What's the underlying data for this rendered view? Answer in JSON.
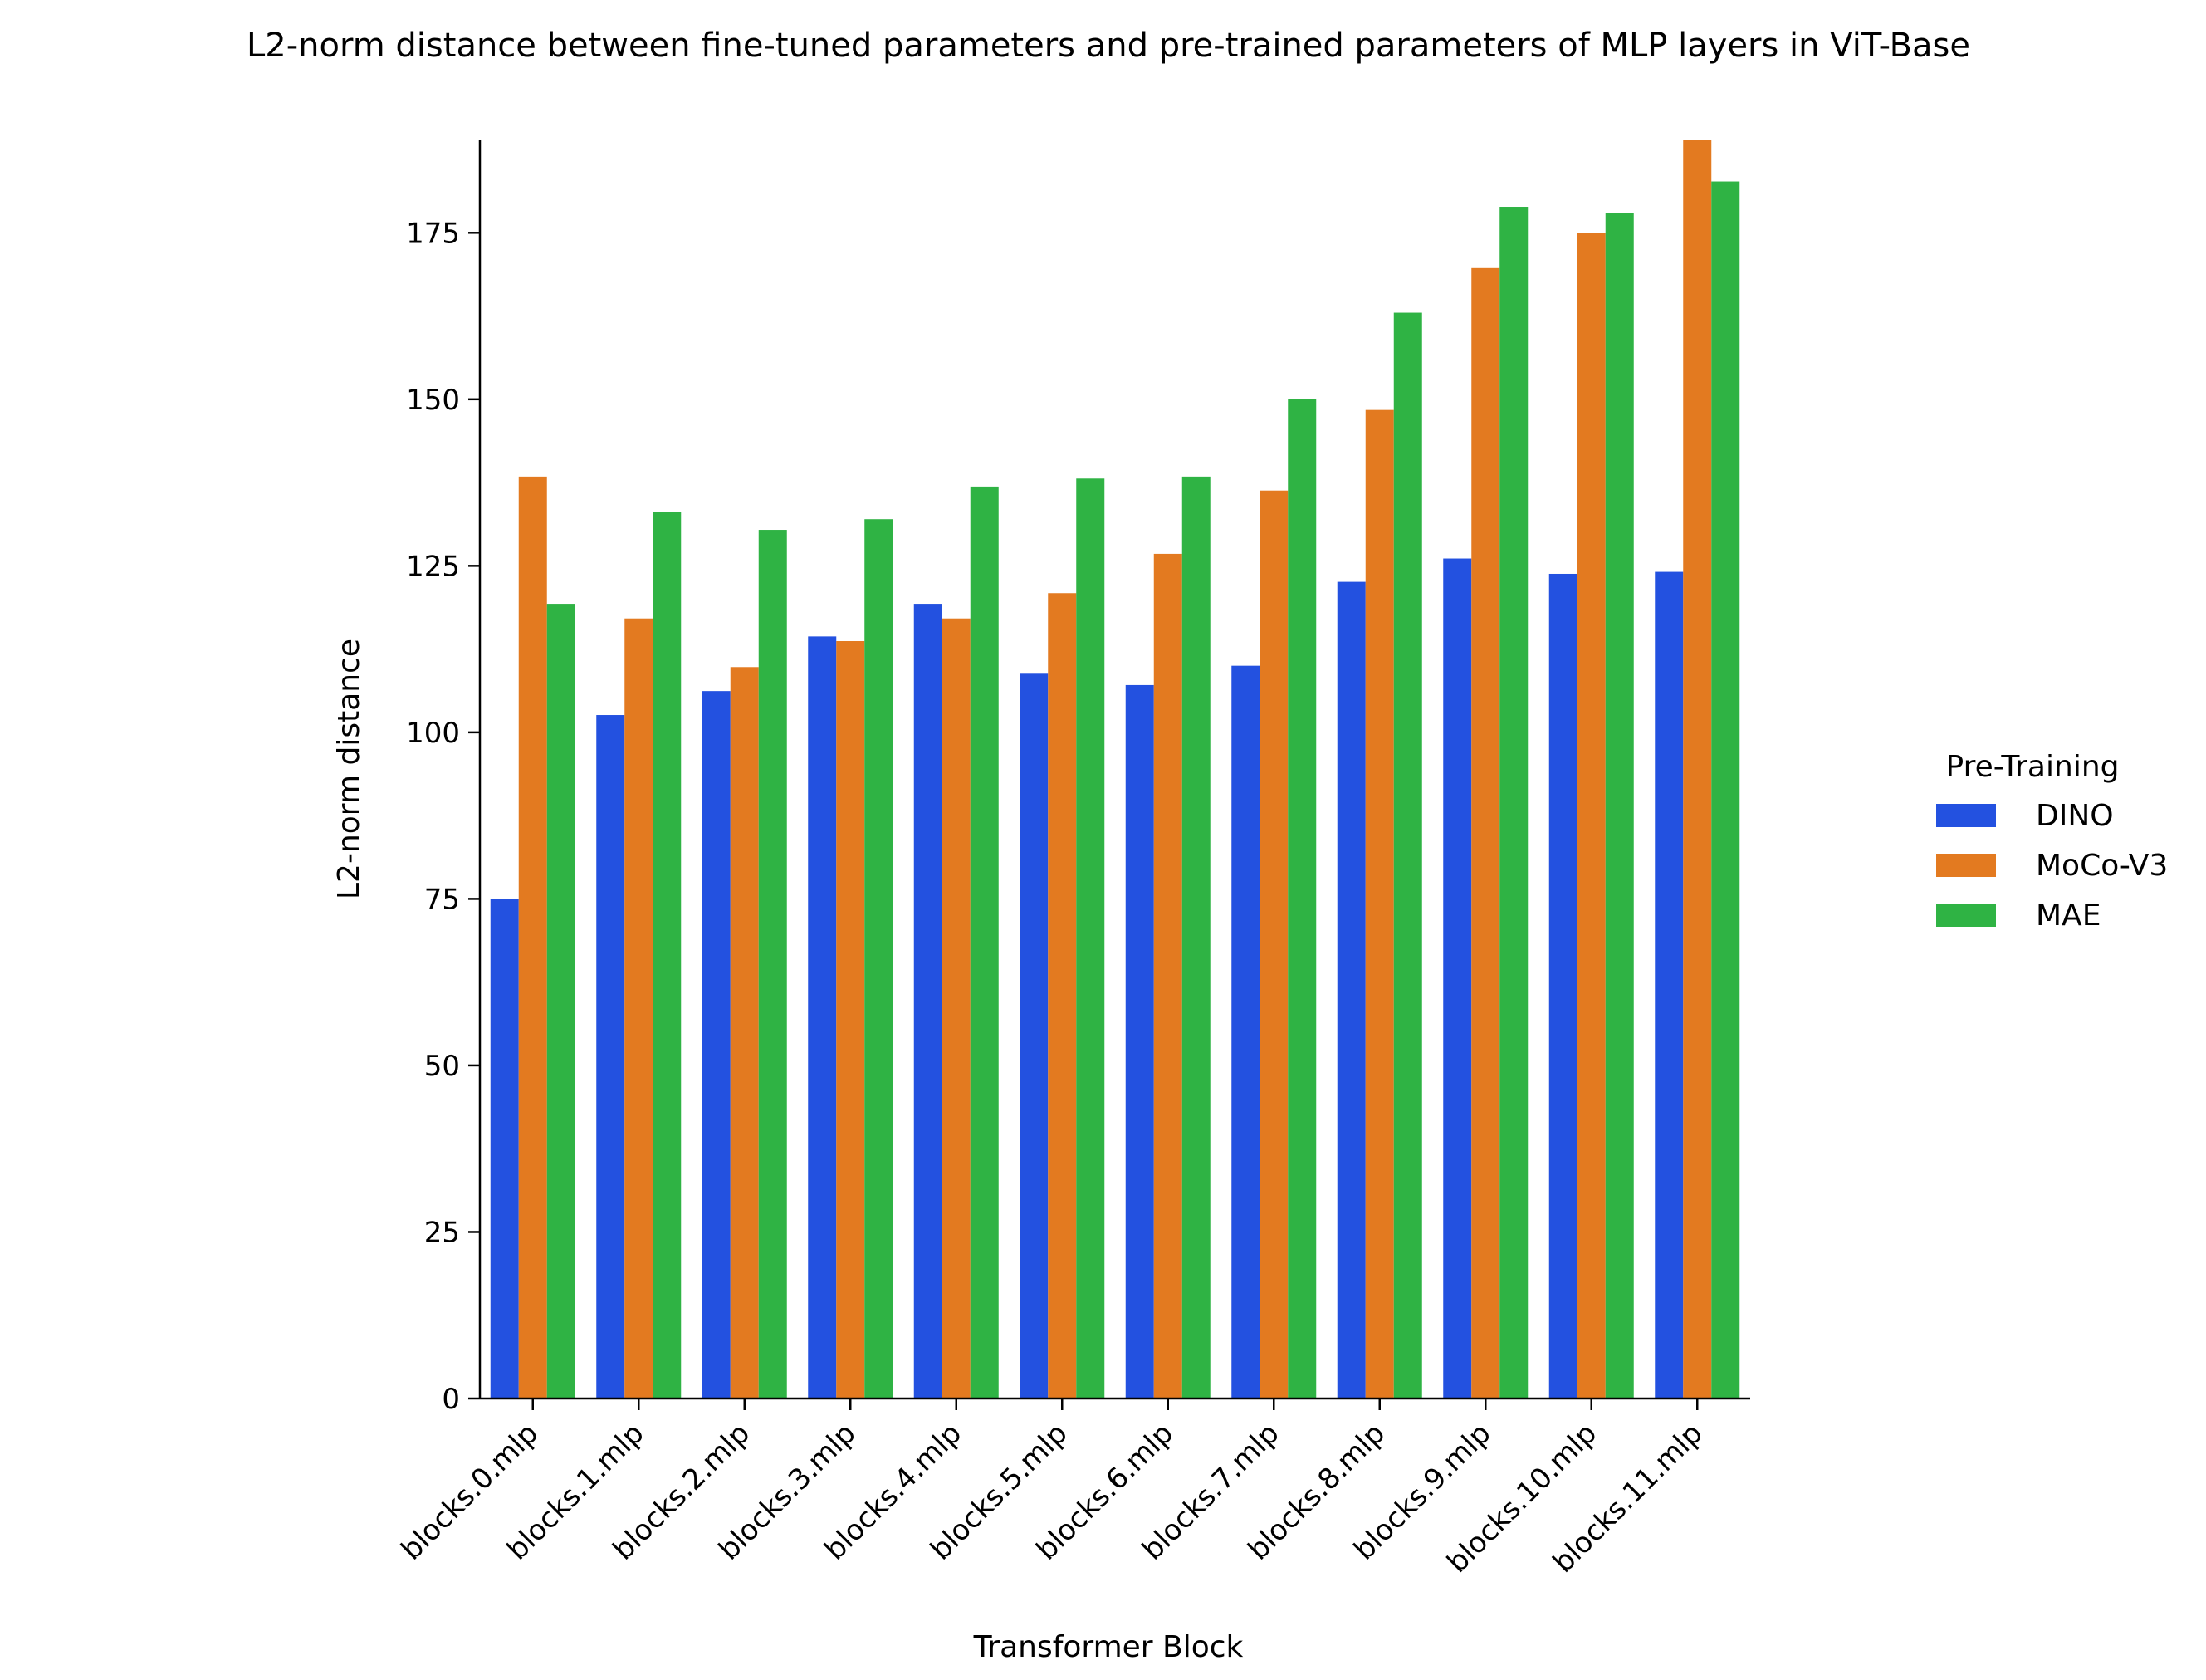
{
  "chart_data": {
    "type": "bar",
    "title": "L2-norm distance between fine-tuned parameters and pre-trained parameters of MLP layers in ViT-Base",
    "xlabel": "Transformer Block",
    "ylabel": "L2-norm distance",
    "ylim": [
      0,
      189
    ],
    "yticks": [
      0,
      25,
      50,
      75,
      100,
      125,
      150,
      175
    ],
    "grid": false,
    "legend": {
      "title": "Pre-Training",
      "position": "right"
    },
    "categories": [
      "blocks.0.mlp",
      "blocks.1.mlp",
      "blocks.2.mlp",
      "blocks.3.mlp",
      "blocks.4.mlp",
      "blocks.5.mlp",
      "blocks.6.mlp",
      "blocks.7.mlp",
      "blocks.8.mlp",
      "blocks.9.mlp",
      "blocks.10.mlp",
      "blocks.11.mlp"
    ],
    "series": [
      {
        "name": "DINO",
        "color": "#2351e0",
        "values": [
          75.0,
          102.6,
          106.2,
          114.4,
          119.3,
          108.8,
          107.1,
          110.0,
          122.6,
          126.1,
          123.8,
          124.1
        ]
      },
      {
        "name": "MoCo-V3",
        "color": "#e37a20",
        "values": [
          138.4,
          117.1,
          109.8,
          113.7,
          117.1,
          120.9,
          126.8,
          136.3,
          148.4,
          169.7,
          175.0,
          189.0
        ]
      },
      {
        "name": "MAE",
        "color": "#2fb344",
        "values": [
          119.3,
          133.1,
          130.4,
          132.0,
          136.9,
          138.1,
          138.4,
          150.0,
          163.0,
          178.9,
          178.0,
          182.7
        ]
      }
    ]
  }
}
